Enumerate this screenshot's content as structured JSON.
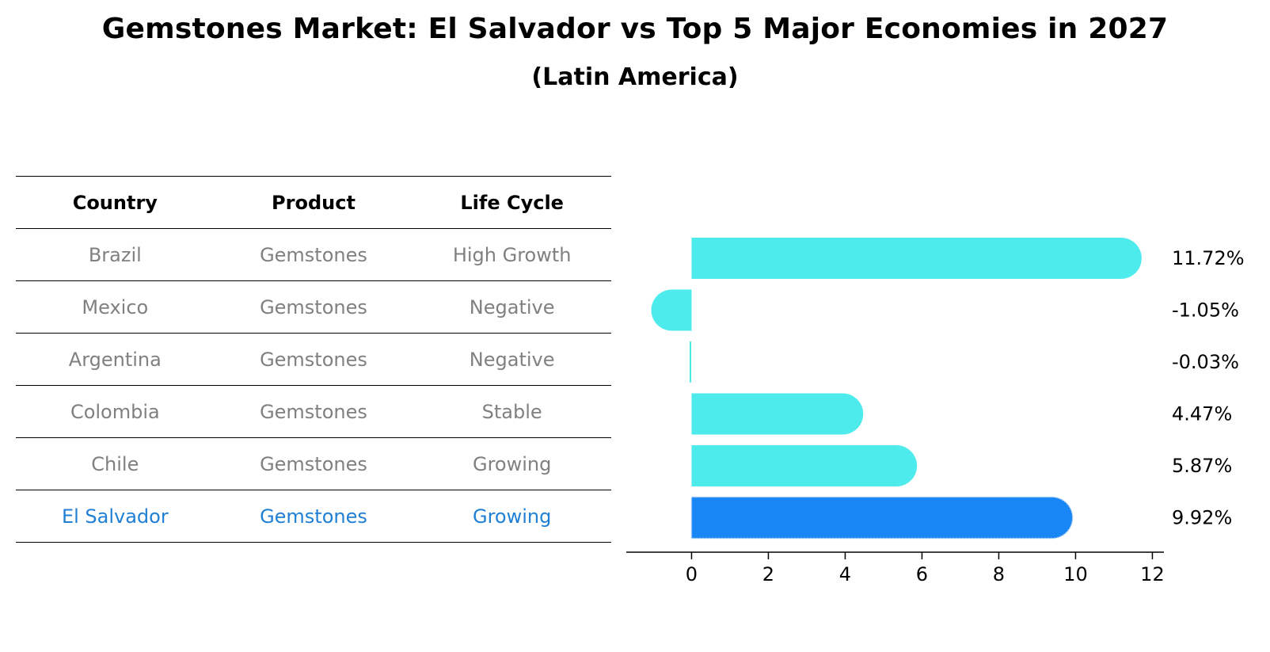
{
  "title": "Gemstones Market: El Salvador vs Top 5 Major Economies in 2027",
  "subtitle": "(Latin America)",
  "table": {
    "headers": [
      "Country",
      "Product",
      "Life Cycle"
    ],
    "rows": [
      {
        "country": "Brazil",
        "product": "Gemstones",
        "life_cycle": "High Growth",
        "highlight": false
      },
      {
        "country": "Mexico",
        "product": "Gemstones",
        "life_cycle": "Negative",
        "highlight": false
      },
      {
        "country": "Argentina",
        "product": "Gemstones",
        "life_cycle": "Negative",
        "highlight": false
      },
      {
        "country": "Colombia",
        "product": "Gemstones",
        "life_cycle": "Stable",
        "highlight": false
      },
      {
        "country": "Chile",
        "product": "Gemstones",
        "life_cycle": "Growing",
        "highlight": false
      },
      {
        "country": "El Salvador",
        "product": "Gemstones",
        "life_cycle": "Growing",
        "highlight": true
      }
    ]
  },
  "colors": {
    "bar": "#4debeb",
    "highlight_bar": "#1886f5",
    "table_text": "#808080",
    "table_highlight_text": "#1f7fd4"
  },
  "chart_data": {
    "type": "bar",
    "orientation": "horizontal",
    "categories": [
      "Brazil",
      "Mexico",
      "Argentina",
      "Colombia",
      "Chile",
      "El Salvador"
    ],
    "values": [
      11.72,
      -1.05,
      -0.03,
      4.47,
      5.87,
      9.92
    ],
    "value_labels": [
      "11.72%",
      "-1.05%",
      "-0.03%",
      "4.47%",
      "5.87%",
      "9.92%"
    ],
    "highlight_index": 5,
    "xlim": [
      -1.7,
      12.3
    ],
    "xticks": [
      0,
      2,
      4,
      6,
      8,
      10,
      12
    ],
    "xlabel": "",
    "ylabel": "",
    "grid": false
  }
}
